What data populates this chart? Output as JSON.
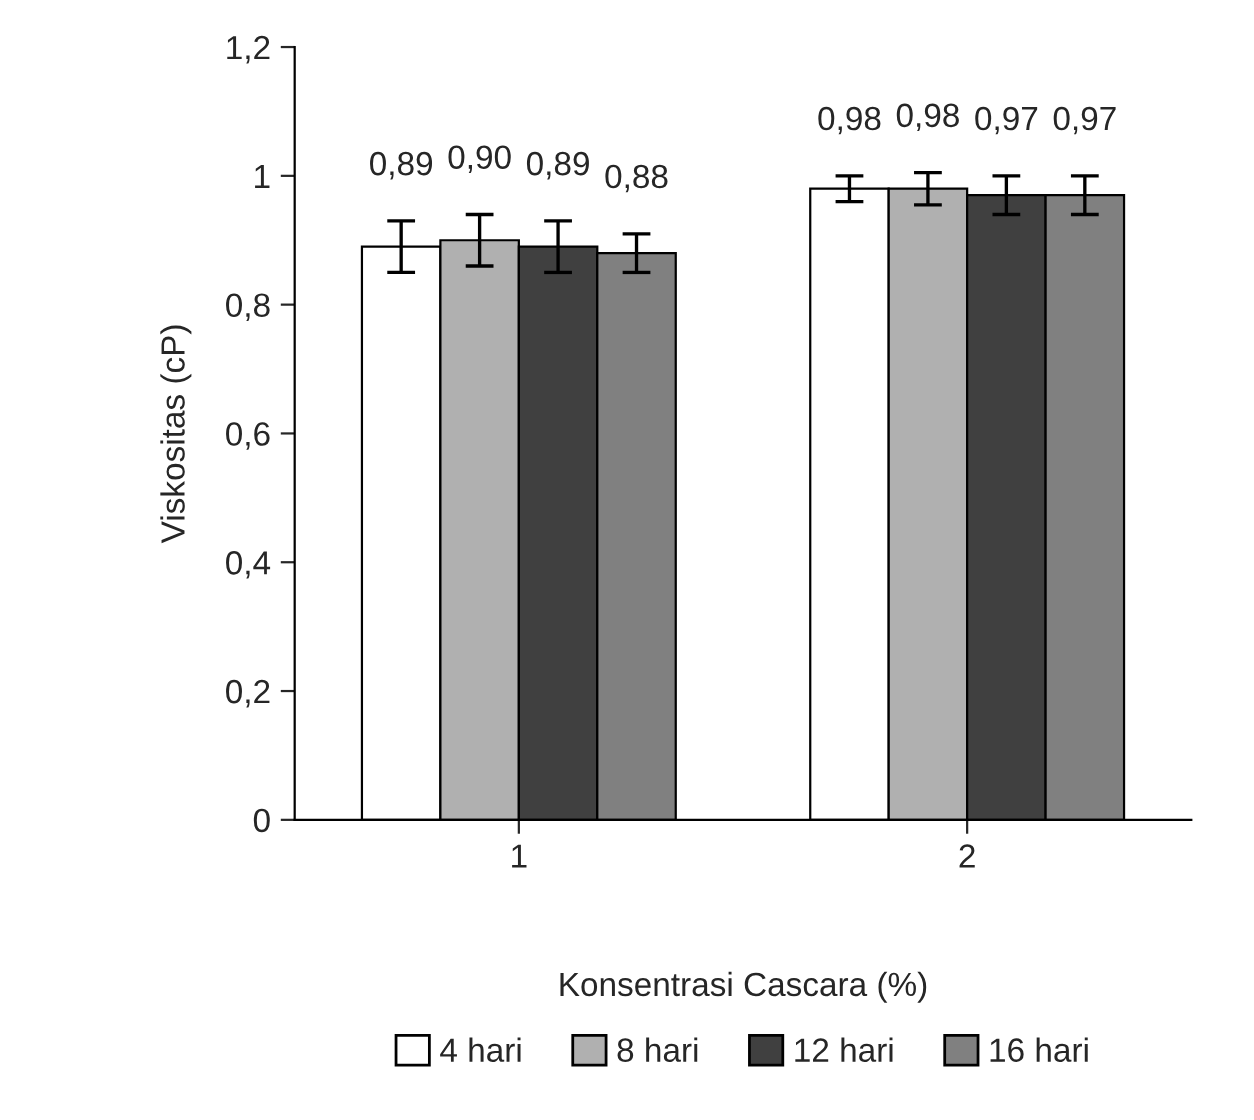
{
  "chart_data": {
    "type": "bar",
    "categories": [
      "1",
      "2"
    ],
    "xlabel": "Konsentrasi Cascara (%)",
    "ylabel": "Viskositas (cP)",
    "series": [
      {
        "name": "4 hari",
        "color": "#ffffff",
        "values": [
          0.89,
          0.98
        ],
        "errors": [
          0.04,
          0.02
        ],
        "value_labels": [
          "0,89",
          "0,98"
        ]
      },
      {
        "name": "8 hari",
        "color": "#b0b0b0",
        "values": [
          0.9,
          0.98
        ],
        "errors": [
          0.04,
          0.025
        ],
        "value_labels": [
          "0,90",
          "0,98"
        ]
      },
      {
        "name": "12 hari",
        "color": "#404040",
        "values": [
          0.89,
          0.97
        ],
        "errors": [
          0.04,
          0.03
        ],
        "value_labels": [
          "0,89",
          "0,97"
        ]
      },
      {
        "name": "16 hari",
        "color": "#808080",
        "values": [
          0.88,
          0.97
        ],
        "errors": [
          0.03,
          0.03
        ],
        "value_labels": [
          "0,88",
          "0,97"
        ]
      }
    ],
    "ylim": [
      0,
      1.2
    ],
    "yticks": [
      0,
      {
        "value": 0.2,
        "label": "0,2"
      },
      {
        "value": 0.4,
        "label": "0,4"
      },
      {
        "value": 0.6,
        "label": "0,6"
      },
      {
        "value": 0.8,
        "label": "0,8"
      },
      1,
      {
        "value": 1.2,
        "label": "1,2"
      }
    ],
    "legend": "bottom"
  }
}
